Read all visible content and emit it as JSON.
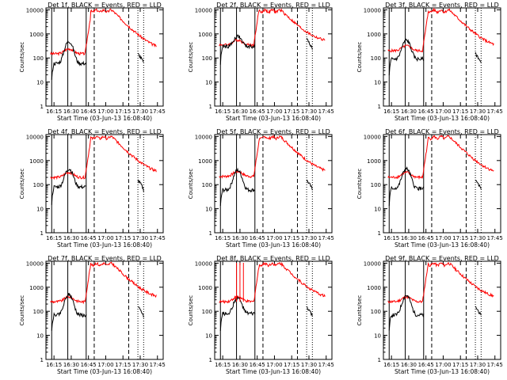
{
  "chart_data": [
    {
      "type": "line",
      "title": "Det 1f, BLACK = Events, RED = LLD"
    },
    {
      "type": "line",
      "title": "Det 2f, BLACK = Events, RED = LLD"
    },
    {
      "type": "line",
      "title": "Det 3f, BLACK = Events, RED = LLD"
    },
    {
      "type": "line",
      "title": "Det 4f, BLACK = Events, RED = LLD"
    },
    {
      "type": "line",
      "title": "Det 5f, BLACK = Events, RED = LLD"
    },
    {
      "type": "line",
      "title": "Det 6f, BLACK = Events, RED = LLD"
    },
    {
      "type": "line",
      "title": "Det 7f, BLACK = Events, RED = LLD"
    },
    {
      "type": "line",
      "title": "Det 8f, BLACK = Events, RED = LLD"
    },
    {
      "type": "line",
      "title": "Det 9f, BLACK = Events, RED = LLD"
    }
  ],
  "shared": {
    "xlabel": "Start Time (03-Jun-13 16:08:40)",
    "ylabel": "Counts/sec",
    "xticks": [
      "16:15",
      "16:30",
      "16:45",
      "17:00",
      "17:15",
      "17:30",
      "17:45"
    ],
    "xtick_minutes": [
      15,
      30,
      45,
      60,
      75,
      90,
      105
    ],
    "xlim_minutes": [
      8,
      110
    ],
    "yticks": [
      "1",
      "10",
      "100",
      "1000",
      "10000"
    ],
    "ytick_values": [
      1,
      10,
      100,
      1000,
      10000
    ],
    "ylim": [
      1,
      12000
    ],
    "y_scale": "log",
    "series": [
      {
        "name": "Events",
        "color": "#000000"
      },
      {
        "name": "LLD",
        "color": "#ff0000"
      }
    ],
    "vertical_markers": {
      "solid_minutes": [
        13,
        27,
        43
      ],
      "dashed_minutes": [
        50,
        80
      ],
      "dotted_minutes": [
        88,
        93
      ]
    }
  }
}
